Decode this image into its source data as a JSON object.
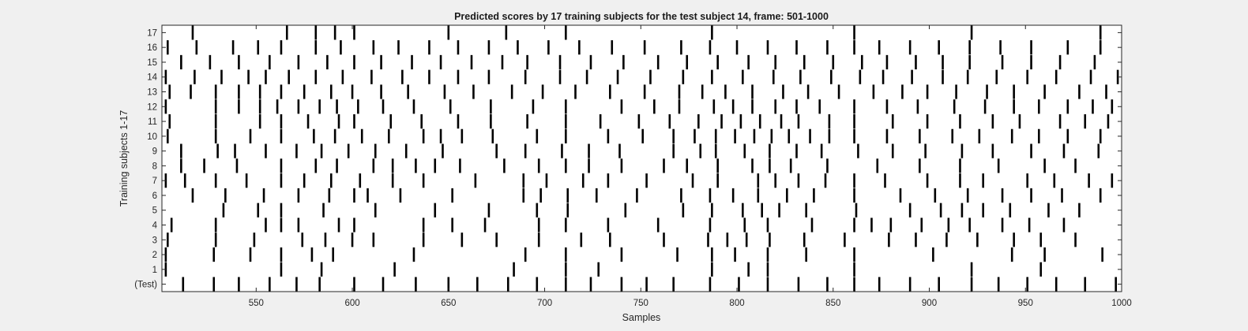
{
  "chart_data": {
    "type": "raster",
    "title": "Predicted scores by 17 training subjects for the test subject 14, frame: 501-1000",
    "xlabel": "Samples",
    "ylabel": "Training subjects 1-17",
    "xlim": [
      501,
      1000
    ],
    "xticks": [
      550,
      600,
      650,
      700,
      750,
      800,
      850,
      900,
      950,
      1000
    ],
    "ytick_labels": [
      "(Test)",
      "1",
      "2",
      "3",
      "4",
      "5",
      "6",
      "7",
      "8",
      "9",
      "10",
      "11",
      "12",
      "13",
      "14",
      "15",
      "16",
      "17"
    ],
    "grid": false,
    "colors": {
      "axes_bg": "#ffffff",
      "figure_bg": "#f0f0f0",
      "event": "#000000",
      "axis": "#262626"
    },
    "rows": [
      {
        "label": "(Test)",
        "events": [
          512,
          528,
          541,
          557,
          571,
          583,
          601,
          616,
          633,
          650,
          665,
          681,
          696,
          711,
          724,
          740,
          753,
          767,
          786,
          801,
          816,
          832,
          847,
          861,
          874,
          890,
          905,
          922,
          936,
          951,
          966,
          981,
          997
        ]
      },
      {
        "label": "1",
        "events": [
          503,
          563,
          584,
          622,
          684,
          711,
          728,
          787,
          806,
          816,
          861,
          922,
          958
        ]
      },
      {
        "label": "2",
        "events": [
          503,
          528,
          547,
          563,
          579,
          590,
          632,
          690,
          711,
          740,
          769,
          787,
          799,
          816,
          836,
          861,
          902,
          943,
          960,
          990
        ]
      },
      {
        "label": "3",
        "events": [
          504,
          529,
          549,
          574,
          586,
          600,
          611,
          637,
          657,
          675,
          697,
          719,
          734,
          762,
          785,
          795,
          805,
          817,
          835,
          856,
          879,
          893,
          909,
          925,
          944,
          958,
          976
        ]
      },
      {
        "label": "4",
        "events": [
          506,
          529,
          555,
          563,
          572,
          593,
          601,
          637,
          652,
          669,
          697,
          711,
          733,
          759,
          786,
          804,
          816,
          839,
          861,
          870,
          880,
          896,
          910,
          921,
          938,
          952,
          970
        ]
      },
      {
        "label": "5",
        "events": [
          533,
          551,
          563,
          585,
          612,
          643,
          671,
          696,
          712,
          742,
          772,
          787,
          803,
          813,
          822,
          836,
          862,
          890,
          906,
          917,
          928,
          942,
          962,
          978
        ]
      },
      {
        "label": "6",
        "events": [
          517,
          534,
          554,
          572,
          588,
          601,
          608,
          625,
          652,
          689,
          698,
          712,
          727,
          748,
          771,
          786,
          798,
          811,
          826,
          840,
          861,
          885,
          903,
          920,
          938,
          953,
          969,
          989
        ]
      },
      {
        "label": "7",
        "events": [
          503,
          513,
          529,
          545,
          563,
          575,
          589,
          604,
          621,
          637,
          664,
          689,
          701,
          720,
          733,
          753,
          777,
          790,
          811,
          820,
          832,
          846,
          861,
          877,
          899,
          916,
          928,
          951,
          965,
          983,
          995
        ]
      },
      {
        "label": "8",
        "events": [
          511,
          523,
          540,
          563,
          581,
          592,
          611,
          621,
          633,
          643,
          656,
          679,
          697,
          711,
          723,
          740,
          762,
          774,
          790,
          808,
          817,
          828,
          847,
          873,
          895,
          916,
          936,
          960,
          976
        ]
      },
      {
        "label": "9",
        "events": [
          511,
          530,
          539,
          555,
          571,
          584,
          598,
          612,
          628,
          647,
          675,
          690,
          709,
          723,
          739,
          767,
          781,
          789,
          804,
          817,
          831,
          844,
          863,
          881,
          898,
          917,
          933,
          953,
          970,
          988
        ]
      },
      {
        "label": "10",
        "events": [
          504,
          529,
          547,
          563,
          580,
          591,
          605,
          619,
          637,
          646,
          657,
          673,
          696,
          711,
          733,
          751,
          767,
          778,
          789,
          799,
          809,
          818,
          827,
          838,
          848,
          861,
          878,
          895,
          912,
          926,
          943,
          957,
          972,
          989
        ]
      },
      {
        "label": "11",
        "events": [
          505,
          529,
          552,
          563,
          577,
          593,
          601,
          620,
          636,
          655,
          672,
          691,
          711,
          729,
          749,
          765,
          780,
          792,
          802,
          812,
          823,
          832,
          848,
          861,
          881,
          899,
          916,
          933,
          947,
          968,
          981,
          993
        ]
      },
      {
        "label": "12",
        "events": [
          503,
          529,
          541,
          552,
          561,
          572,
          583,
          592,
          603,
          616,
          632,
          651,
          672,
          694,
          711,
          740,
          757,
          770,
          788,
          798,
          808,
          820,
          831,
          843,
          861,
          878,
          894,
          913,
          929,
          944,
          957,
          972,
          985,
          995
        ]
      },
      {
        "label": "13",
        "events": [
          505,
          516,
          529,
          541,
          552,
          563,
          575,
          589,
          600,
          615,
          629,
          648,
          663,
          683,
          699,
          716,
          734,
          752,
          770,
          782,
          794,
          808,
          824,
          837,
          853,
          871,
          886,
          899,
          914,
          930,
          944,
          960,
          978,
          992
        ]
      },
      {
        "label": "14",
        "events": [
          503,
          518,
          532,
          546,
          555,
          567,
          581,
          595,
          610,
          626,
          640,
          655,
          671,
          690,
          708,
          722,
          738,
          755,
          772,
          787,
          803,
          819,
          833,
          849,
          864,
          876,
          891,
          907,
          920,
          935,
          951,
          966,
          984,
          998
        ]
      },
      {
        "label": "15",
        "events": [
          511,
          526,
          541,
          557,
          572,
          587,
          601,
          615,
          631,
          646,
          662,
          678,
          691,
          708,
          724,
          741,
          759,
          774,
          790,
          806,
          820,
          835,
          850,
          865,
          878,
          893,
          907,
          921,
          938,
          953,
          968,
          986
        ]
      },
      {
        "label": "16",
        "events": [
          504,
          519,
          538,
          551,
          563,
          581,
          594,
          611,
          624,
          640,
          655,
          671,
          686,
          702,
          718,
          735,
          752,
          771,
          786,
          800,
          816,
          831,
          847,
          861,
          874,
          890,
          905,
          921,
          937,
          953,
          972,
          989
        ]
      },
      {
        "label": "17",
        "events": [
          517,
          566,
          581,
          591,
          601,
          650,
          680,
          711,
          787,
          861,
          922,
          989
        ]
      }
    ]
  }
}
